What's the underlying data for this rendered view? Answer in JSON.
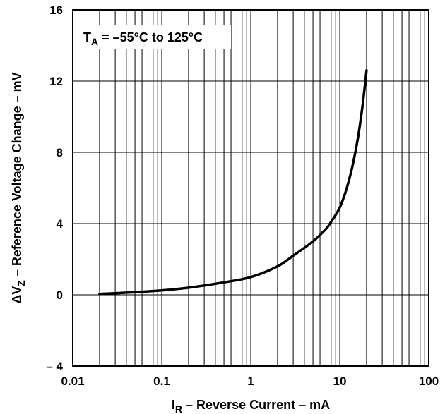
{
  "chart_data": {
    "type": "line",
    "x_scale": "log",
    "xlim": [
      0.01,
      100
    ],
    "ylim": [
      -4,
      16
    ],
    "x_ticks": [
      "0.01",
      "0.1",
      "1",
      "10",
      "100"
    ],
    "y_ticks": [
      "– 4",
      "0",
      "4",
      "8",
      "12",
      "16"
    ],
    "y_tick_values": [
      -4,
      0,
      4,
      8,
      12,
      16
    ],
    "x_tick_values": [
      0.01,
      0.1,
      1,
      10,
      100
    ],
    "grid": true,
    "xlabel": {
      "main": "I",
      "sub": "R",
      "rest": " – Reverse Current – mA"
    },
    "ylabel": {
      "main": "ΔV",
      "sub": "Z",
      "rest": " – Reference Voltage Change – mV"
    },
    "annotation": {
      "main": "T",
      "sub": "A",
      "rest": " = –55°C to 125°C"
    },
    "series": [
      {
        "x": [
          0.02,
          0.05,
          0.1,
          0.2,
          0.5,
          1,
          2,
          3,
          5,
          7,
          8,
          10,
          12,
          14,
          16,
          18,
          20
        ],
        "y": [
          0.05,
          0.15,
          0.25,
          0.4,
          0.7,
          1.0,
          1.6,
          2.2,
          3.0,
          3.7,
          4.1,
          4.9,
          6.0,
          7.3,
          8.8,
          10.6,
          12.6
        ]
      }
    ]
  }
}
